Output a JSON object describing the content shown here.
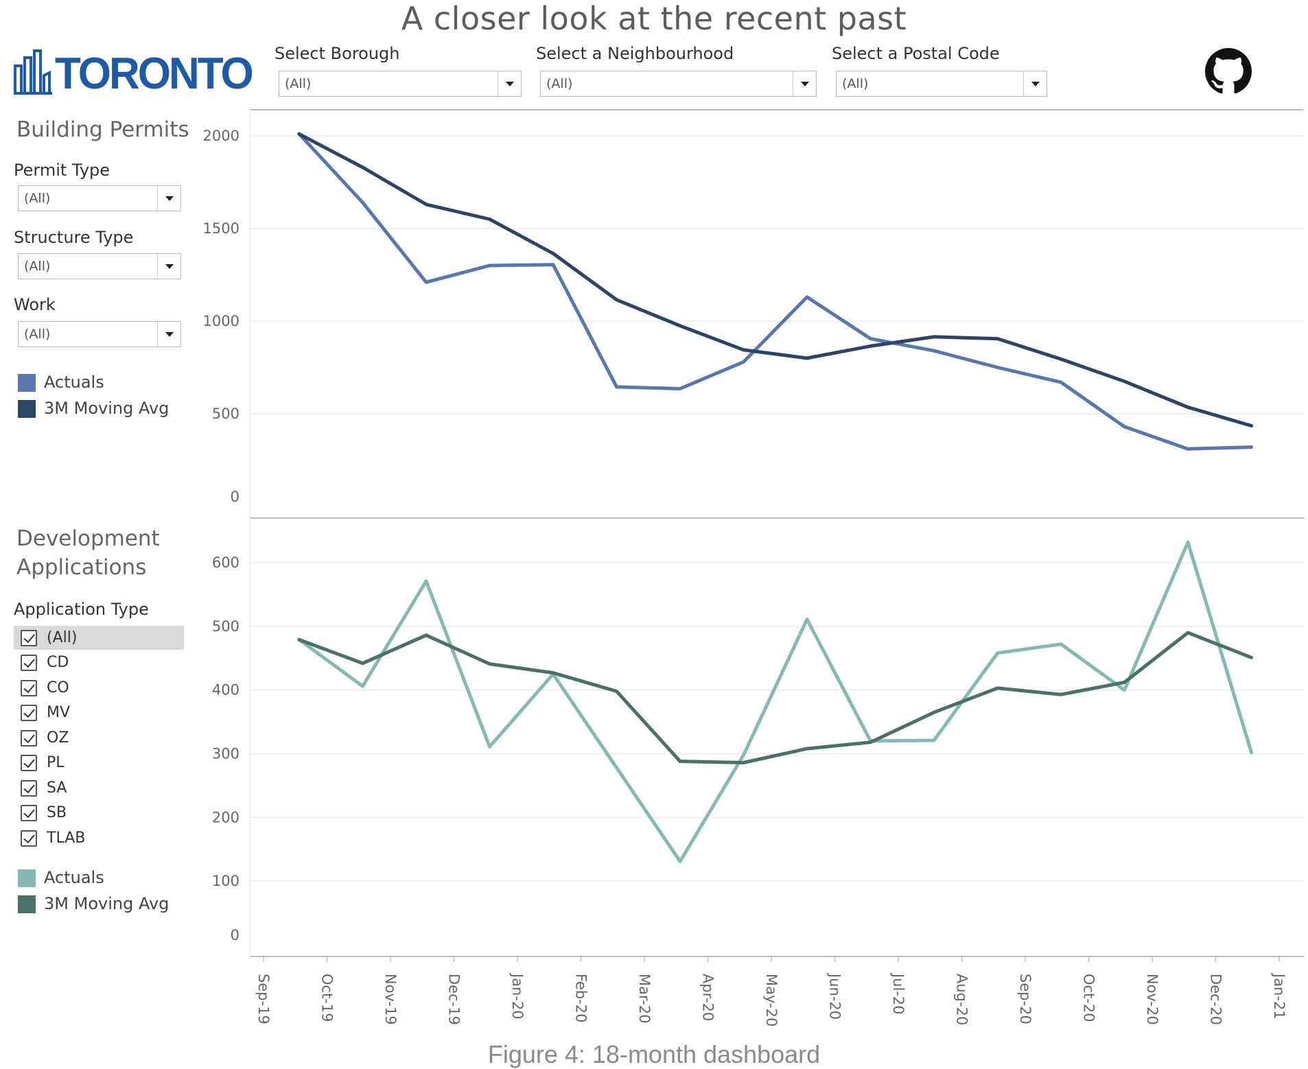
{
  "title": "A closer look at the recent past",
  "caption": "Figure 4: 18-month dashboard",
  "logo": {
    "text": "TORONTO",
    "color": "#1f5aa6"
  },
  "github_icon": "github-icon",
  "filters": [
    {
      "label": "Select Borough",
      "value": "(All)"
    },
    {
      "label": "Select a Neighbourhood",
      "value": "(All)"
    },
    {
      "label": "Select a Postal Code",
      "value": "(All)"
    }
  ],
  "permits_panel": {
    "title": "Building Permits",
    "filters": [
      {
        "label": "Permit Type",
        "value": "(All)"
      },
      {
        "label": "Structure Type",
        "value": "(All)"
      },
      {
        "label": "Work",
        "value": "(All)"
      }
    ],
    "legend": [
      {
        "label": "Actuals",
        "color": "#5878ad"
      },
      {
        "label": "3M Moving Avg",
        "color": "#2d4466"
      }
    ]
  },
  "dev_panel": {
    "title_line1": "Development",
    "title_line2": "Applications",
    "filter_label": "Application Type",
    "options": [
      {
        "label": "(All)",
        "checked": true,
        "selected": true
      },
      {
        "label": "CD",
        "checked": true
      },
      {
        "label": "CO",
        "checked": true
      },
      {
        "label": "MV",
        "checked": true
      },
      {
        "label": "OZ",
        "checked": true
      },
      {
        "label": "PL",
        "checked": true
      },
      {
        "label": "SA",
        "checked": true
      },
      {
        "label": "SB",
        "checked": true
      },
      {
        "label": "TLAB",
        "checked": true
      }
    ],
    "legend": [
      {
        "label": "Actuals",
        "color": "#86b9b5"
      },
      {
        "label": "3M Moving Avg",
        "color": "#4b6f6a"
      }
    ]
  },
  "chart_data": [
    {
      "type": "line",
      "name": "Building Permits",
      "x_ticks": [
        "Sep-19",
        "Oct-19",
        "Nov-19",
        "Dec-19",
        "Jan-20",
        "Feb-20",
        "Mar-20",
        "Apr-20",
        "May-20",
        "Jun-20",
        "Jul-20",
        "Aug-20",
        "Sep-20",
        "Oct-20",
        "Nov-20",
        "Dec-20",
        "Jan-21"
      ],
      "x": [
        "Sep-19 mid",
        "Oct-19 mid",
        "Nov-19 mid",
        "Dec-19 mid",
        "Jan-20 mid",
        "Feb-20 mid",
        "Mar-20 mid",
        "Apr-20 mid",
        "May-20 mid",
        "Jun-20 mid",
        "Jul-20 mid",
        "Aug-20 mid",
        "Sep-20 mid",
        "Oct-20 mid",
        "Nov-20 mid",
        "Dec-20 mid"
      ],
      "y_ticks": [
        0,
        500,
        1000,
        1500,
        2000
      ],
      "ylim": [
        0,
        2130
      ],
      "series": [
        {
          "name": "Actuals",
          "color": "#5878ad",
          "values": [
            2010,
            1640,
            1210,
            1300,
            1305,
            645,
            635,
            780,
            1130,
            905,
            840,
            750,
            670,
            430,
            310,
            320
          ]
        },
        {
          "name": "3M Moving Avg",
          "color": "#2d4466",
          "values": [
            2010,
            1830,
            1630,
            1550,
            1365,
            1115,
            975,
            845,
            800,
            865,
            915,
            905,
            795,
            675,
            535,
            435
          ]
        }
      ]
    },
    {
      "type": "line",
      "name": "Development Applications",
      "x_ticks": [
        "Sep-19",
        "Oct-19",
        "Nov-19",
        "Dec-19",
        "Jan-20",
        "Feb-20",
        "Mar-20",
        "Apr-20",
        "May-20",
        "Jun-20",
        "Jul-20",
        "Aug-20",
        "Sep-20",
        "Oct-20",
        "Nov-20",
        "Dec-20",
        "Jan-21"
      ],
      "x": [
        "Sep-19 mid",
        "Oct-19 mid",
        "Nov-19 mid",
        "Dec-19 mid",
        "Jan-20 mid",
        "Feb-20 mid",
        "Mar-20 mid",
        "Apr-20 mid",
        "May-20 mid",
        "Jun-20 mid",
        "Jul-20 mid",
        "Aug-20 mid",
        "Sep-20 mid",
        "Oct-20 mid",
        "Nov-20 mid",
        "Dec-20 mid"
      ],
      "y_ticks": [
        0,
        100,
        200,
        300,
        400,
        500,
        600
      ],
      "ylim": [
        0,
        655
      ],
      "series": [
        {
          "name": "Actuals",
          "color": "#86b9b5",
          "values": [
            479,
            406,
            571,
            311,
            425,
            278,
            131,
            298,
            511,
            320,
            321,
            458,
            472,
            400,
            632,
            302
          ]
        },
        {
          "name": "3M Moving Avg",
          "color": "#4b6f6a",
          "values": [
            479,
            442,
            486,
            441,
            427,
            398,
            288,
            286,
            308,
            318,
            365,
            403,
            393,
            412,
            490,
            451
          ]
        }
      ]
    }
  ]
}
